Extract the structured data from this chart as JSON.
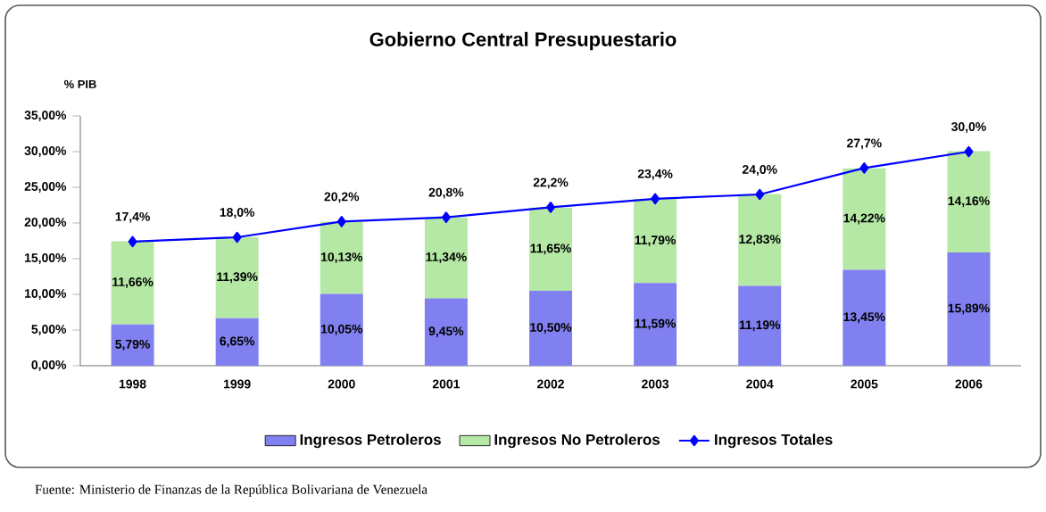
{
  "chart_data": {
    "type": "bar",
    "title": "Gobierno Central Presupuestario",
    "ylabel": "% PIB",
    "categories": [
      "1998",
      "1999",
      "2000",
      "2001",
      "2002",
      "2003",
      "2004",
      "2005",
      "2006"
    ],
    "stacked": true,
    "legend": "bottom",
    "ylim": [
      0,
      35
    ],
    "yticks": [
      {
        "value": 0,
        "label": "0,00%"
      },
      {
        "value": 5,
        "label": "5,00%"
      },
      {
        "value": 10,
        "label": "10,00%"
      },
      {
        "value": 15,
        "label": "15,00%"
      },
      {
        "value": 20,
        "label": "20,00%"
      },
      {
        "value": 25,
        "label": "25,00%"
      },
      {
        "value": 30,
        "label": "30,00%"
      },
      {
        "value": 35,
        "label": "35,00%"
      }
    ],
    "series": [
      {
        "name": "Ingresos Petroleros",
        "color": "#8080f0",
        "values": [
          5.79,
          6.65,
          10.05,
          9.45,
          10.5,
          11.59,
          11.19,
          13.45,
          15.89
        ],
        "value_labels": [
          "5,79%",
          "6,65%",
          "10,05%",
          "9,45%",
          "10,50%",
          "11,59%",
          "11,19%",
          "13,45%",
          "15,89%"
        ]
      },
      {
        "name": "Ingresos No Petroleros",
        "color": "#b4e8a4",
        "values": [
          11.66,
          11.39,
          10.13,
          11.34,
          11.65,
          11.79,
          12.83,
          14.22,
          14.16
        ],
        "value_labels": [
          "11,66%",
          "11,39%",
          "10,13%",
          "11,34%",
          "11,65%",
          "11,79%",
          "12,83%",
          "14,22%",
          "14,16%"
        ]
      },
      {
        "name": "Ingresos Totales",
        "type": "line",
        "color": "#0000ff",
        "marker": "diamond",
        "values": [
          17.4,
          18.0,
          20.2,
          20.8,
          22.2,
          23.4,
          24.0,
          27.7,
          30.0
        ],
        "value_labels": [
          "17,4%",
          "18,0%",
          "20,2%",
          "20,8%",
          "22,2%",
          "23,4%",
          "24,0%",
          "27,7%",
          "30,0%"
        ]
      }
    ],
    "annotations": [
      "Fuente: Ministerio de Finanzas de la República Bolivariana de Venezuela"
    ]
  }
}
